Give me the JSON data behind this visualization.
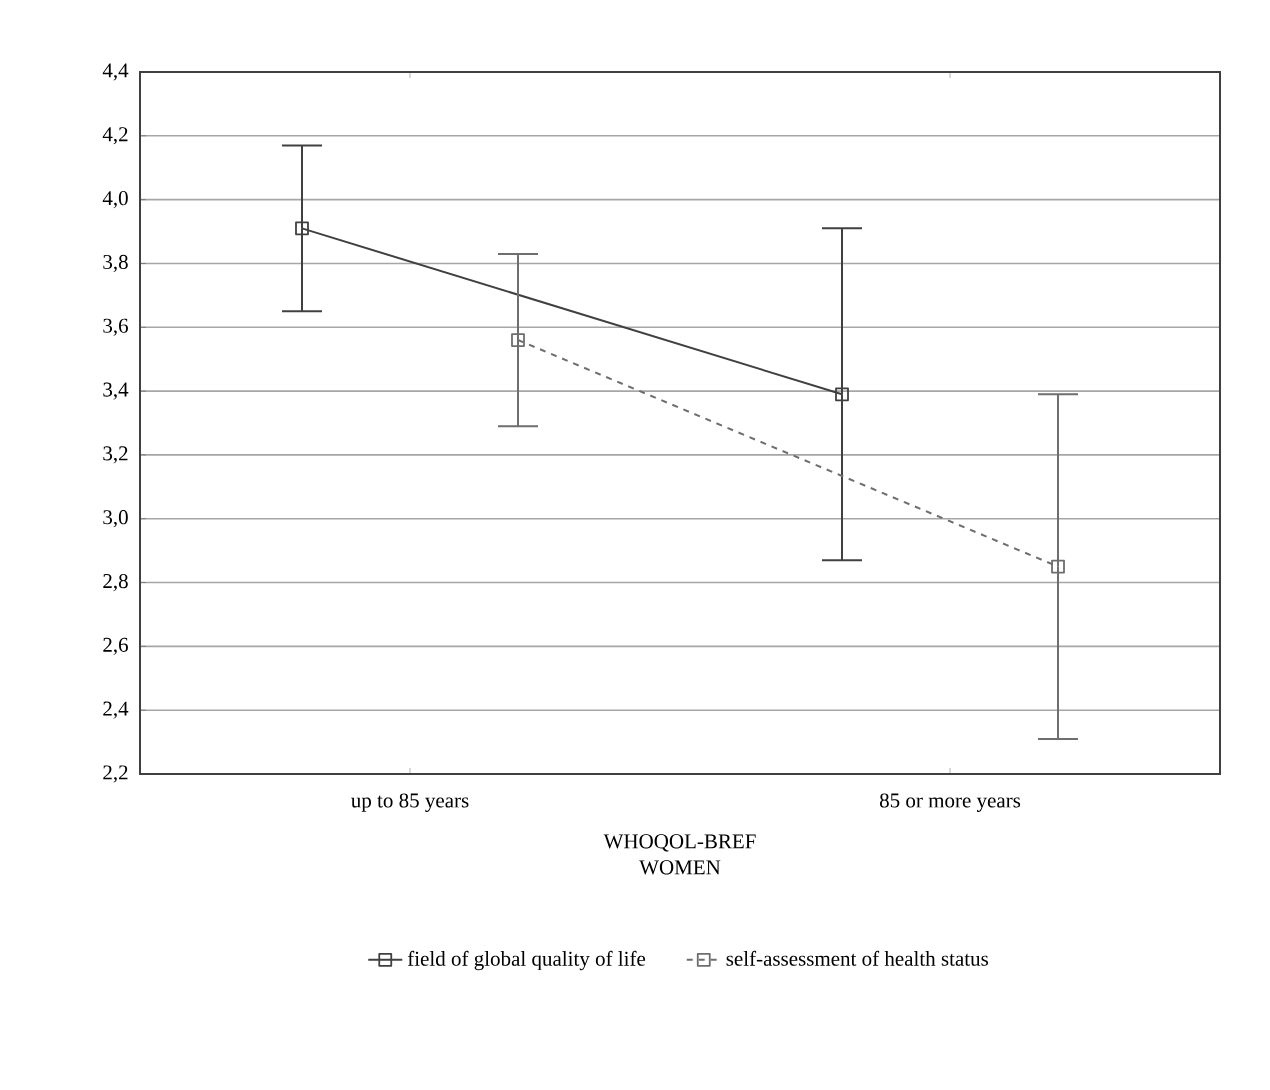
{
  "chart_data": {
    "type": "line",
    "xlabel": "WHOQOL-BREF WOMEN",
    "categories": [
      "up to 85 years",
      "85 or more years"
    ],
    "series": [
      {
        "name": "field of global quality of life",
        "color": "#404040",
        "line_style": "solid",
        "values": [
          3.91,
          3.39
        ],
        "errors": [
          0.26,
          0.52
        ]
      },
      {
        "name": "self-assessment of health status",
        "color": "#6e6e6e",
        "line_style": "dashed",
        "values": [
          3.56,
          2.85
        ],
        "errors": [
          0.27,
          0.54
        ]
      }
    ],
    "ylim": [
      2.2,
      4.4
    ],
    "yticks": [
      {
        "value": 2.2,
        "label": "2,2"
      },
      {
        "value": 2.4,
        "label": "2,4"
      },
      {
        "value": 2.6,
        "label": "2,6"
      },
      {
        "value": 2.8,
        "label": "2,8"
      },
      {
        "value": 3.0,
        "label": "3,0"
      },
      {
        "value": 3.2,
        "label": "3,2"
      },
      {
        "value": 3.4,
        "label": "3,4"
      },
      {
        "value": 3.6,
        "label": "3,6"
      },
      {
        "value": 3.8,
        "label": "3,8"
      },
      {
        "value": 4.0,
        "label": "4,0"
      },
      {
        "value": 4.2,
        "label": "4,2"
      },
      {
        "value": 4.4,
        "label": "4,4"
      }
    ],
    "grid": "y",
    "legend": "bottom",
    "marker": "square"
  }
}
